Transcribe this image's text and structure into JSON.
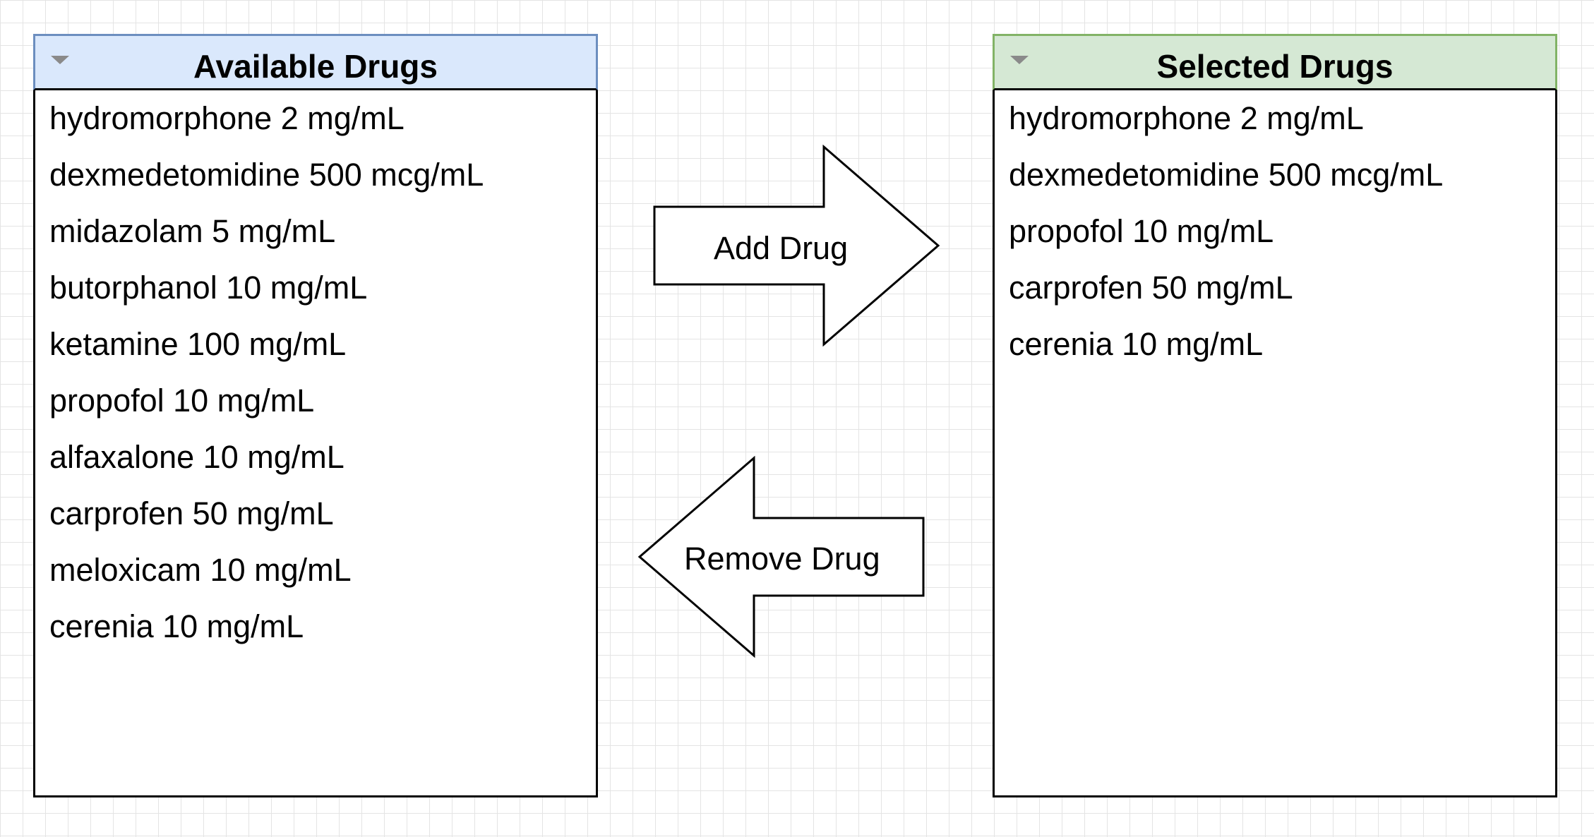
{
  "available_panel": {
    "title": "Available Drugs",
    "header_color": "#dae8fc",
    "items": [
      "hydromorphone 2 mg/mL",
      "dexmedetomidine 500 mcg/mL",
      "midazolam 5 mg/mL",
      "butorphanol 10 mg/mL",
      "ketamine 100 mg/mL",
      "propofol 10 mg/mL",
      "alfaxalone 10 mg/mL",
      "carprofen 50 mg/mL",
      "meloxicam 10 mg/mL",
      "cerenia 10 mg/mL"
    ]
  },
  "selected_panel": {
    "title": "Selected Drugs",
    "header_color": "#d5e8d4",
    "items": [
      "hydromorphone 2 mg/mL",
      "dexmedetomidine 500 mcg/mL",
      "propofol 10 mg/mL",
      "carprofen 50 mg/mL",
      "cerenia 10 mg/mL"
    ]
  },
  "actions": {
    "add_label": "Add Drug",
    "remove_label": "Remove Drug"
  }
}
